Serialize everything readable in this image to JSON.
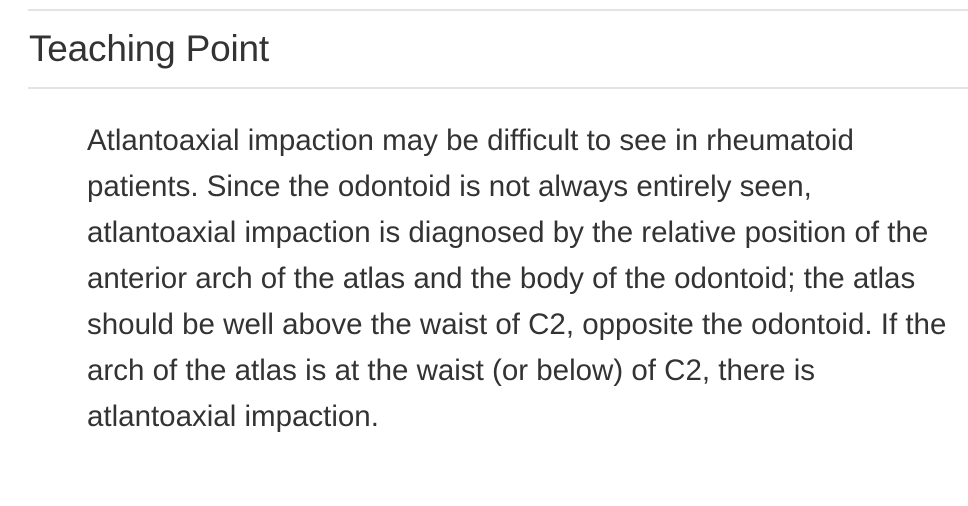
{
  "section": {
    "title": "Teaching Point",
    "body": "Atlantoaxial impaction may be difficult to see in rheumatoid patients. Since the odontoid is not always entirely seen, atlantoaxial impaction is diagnosed by the relative position of the anterior arch of the atlas and the body of the odontoid; the atlas should be well above the waist of C2, opposite the odontoid. If the arch of the atlas is at the waist (or below) of C2, there is atlantoaxial impaction."
  },
  "colors": {
    "text": "#333333",
    "rule": "#e3e3e3",
    "background": "#ffffff"
  }
}
